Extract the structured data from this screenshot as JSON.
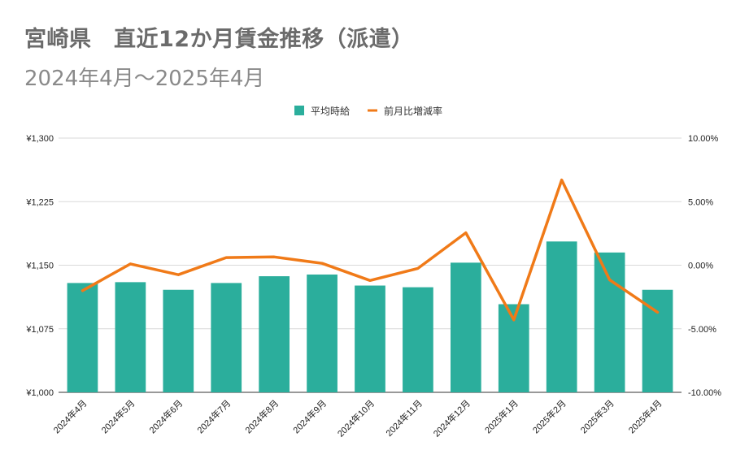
{
  "title": "宮崎県　直近12か月賃金推移（派遣）",
  "subtitle": "2024年4月～2025年4月",
  "colors": {
    "bar": "#2bae9c",
    "line": "#f07a18",
    "grid": "#d9d9d9",
    "axis": "#333333"
  },
  "chart_data": {
    "type": "bar",
    "categories": [
      "2024年4月",
      "2024年5月",
      "2024年6月",
      "2024年7月",
      "2024年8月",
      "2024年9月",
      "2024年10月",
      "2024年11月",
      "2024年12月",
      "2025年1月",
      "2025年2月",
      "2025年3月",
      "2025年4月"
    ],
    "series": [
      {
        "name": "平均時給",
        "type": "bar",
        "axis": "left",
        "values": [
          1129,
          1130,
          1121,
          1129,
          1137,
          1139,
          1126,
          1124,
          1153,
          1104,
          1178,
          1165,
          1121
        ]
      },
      {
        "name": "前月比増減率",
        "type": "line",
        "axis": "right",
        "values": [
          -2.0,
          0.1,
          -0.75,
          0.6,
          0.65,
          0.15,
          -1.2,
          -0.25,
          2.55,
          -4.3,
          6.7,
          -1.15,
          -3.7
        ]
      }
    ],
    "y_left": {
      "min": 1000,
      "max": 1300,
      "ticks": [
        "¥1,000",
        "¥1,075",
        "¥1,150",
        "¥1,225",
        "¥1,300"
      ]
    },
    "y_right": {
      "min": -10,
      "max": 10,
      "ticks": [
        "-10.00%",
        "-5.00%",
        "0.00%",
        "5.00%",
        "10.00%"
      ]
    },
    "legend": [
      "平均時給",
      "前月比増減率"
    ],
    "legend_position": "top-center",
    "grid": true
  }
}
